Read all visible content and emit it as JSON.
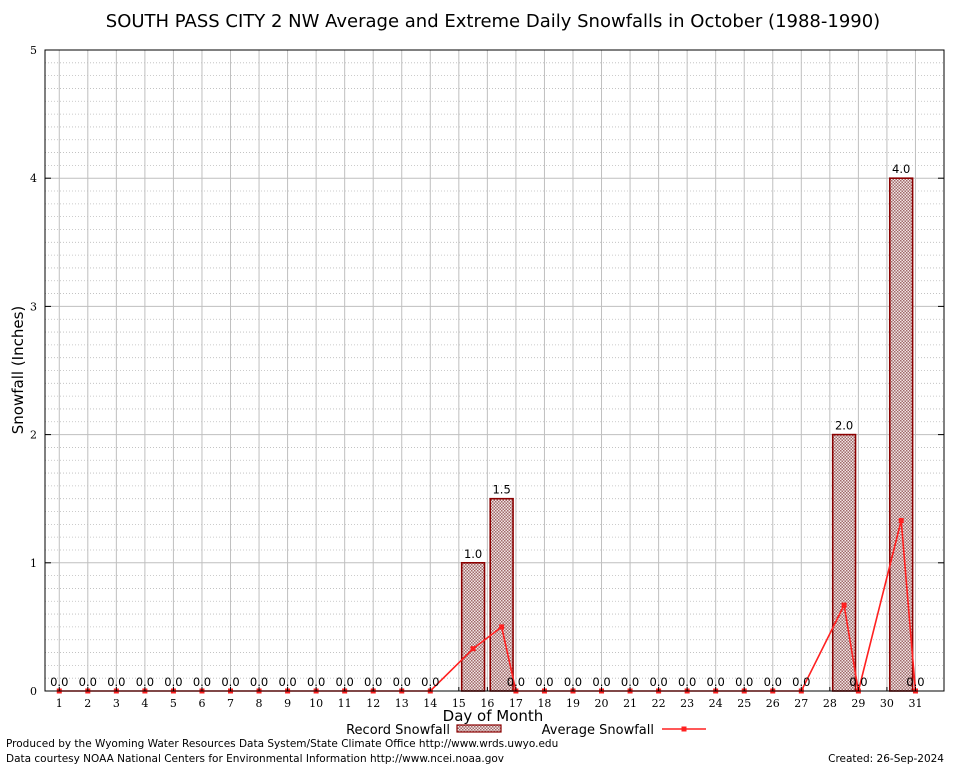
{
  "chart_data": {
    "type": "bar",
    "title": "SOUTH PASS CITY 2 NW Average and Extreme Daily Snowfalls in October (1988-1990)",
    "xlabel": "Day of Month",
    "ylabel": "Snowfall (Inches)",
    "ylim": [
      0,
      5
    ],
    "yticks": [
      0,
      1,
      2,
      3,
      4,
      5
    ],
    "categories": [
      "1",
      "2",
      "3",
      "4",
      "5",
      "6",
      "7",
      "8",
      "9",
      "10",
      "11",
      "12",
      "13",
      "14",
      "15",
      "16",
      "17",
      "18",
      "19",
      "20",
      "21",
      "22",
      "23",
      "24",
      "25",
      "26",
      "27",
      "28",
      "29",
      "30",
      "31"
    ],
    "series": [
      {
        "name": "Record Snowfall",
        "type": "bar",
        "values": [
          0,
          0,
          0,
          0,
          0,
          0,
          0,
          0,
          0,
          0,
          0,
          0,
          0,
          0,
          1.0,
          1.5,
          0,
          0,
          0,
          0,
          0,
          0,
          0,
          0,
          0,
          0,
          0,
          2.0,
          0,
          4.0,
          0
        ],
        "labels": [
          "0.0",
          "0.0",
          "0.0",
          "0.0",
          "0.0",
          "0.0",
          "0.0",
          "0.0",
          "0.0",
          "0.0",
          "0.0",
          "0.0",
          "0.0",
          "0.0",
          "1.0",
          "1.5",
          "0.0",
          "0.0",
          "0.0",
          "0.0",
          "0.0",
          "0.0",
          "0.0",
          "0.0",
          "0.0",
          "0.0",
          "0.0",
          "2.0",
          "0.0",
          "4.0",
          "0.0"
        ]
      },
      {
        "name": "Average Snowfall",
        "type": "line",
        "values": [
          0,
          0,
          0,
          0,
          0,
          0,
          0,
          0,
          0,
          0,
          0,
          0,
          0,
          0,
          0.33,
          0.5,
          0,
          0,
          0,
          0,
          0,
          0,
          0,
          0,
          0,
          0,
          0,
          0.67,
          0,
          1.33,
          0
        ]
      }
    ],
    "grid": true,
    "legend": "bottom-center",
    "colors": {
      "bar_fill": "#b58a8a",
      "bar_stroke": "#8b0000",
      "line": "#ff2020"
    }
  },
  "footer": {
    "produced_by": "Produced by the Wyoming Water Resources Data System/State Climate Office http://www.wrds.uwyo.edu",
    "courtesy": "Data courtesy NOAA National Centers for Environmental Information http://www.ncei.noaa.gov",
    "created": "Created: 26-Sep-2024"
  }
}
